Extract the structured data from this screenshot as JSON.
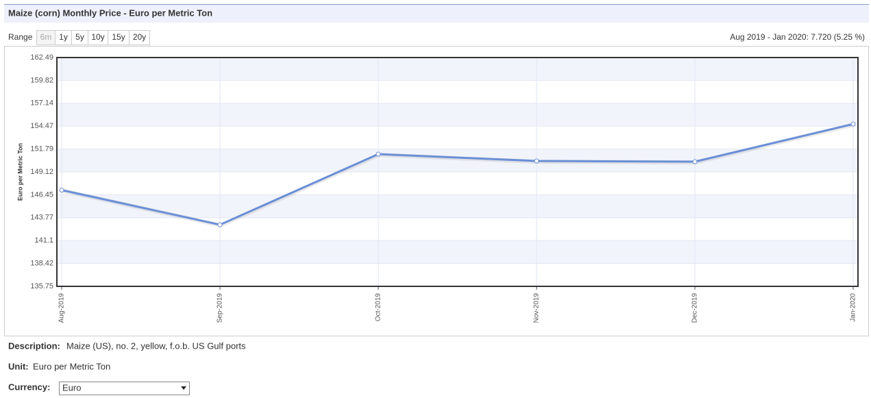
{
  "chart_data": {
    "type": "line",
    "title": "Maize (corn) Monthly Price - Euro per Metric Ton",
    "y_label": "Euro per Metric Ton",
    "categories": [
      "Aug-2019",
      "Sep-2019",
      "Oct-2019",
      "Nov-2019",
      "Dec-2019",
      "Jan-2020"
    ],
    "series": [
      {
        "color": "#6a8fd6",
        "values": [
          147.0,
          142.95,
          151.2,
          150.4,
          150.32,
          154.72
        ]
      }
    ],
    "ylim": [
      135.75,
      162.49
    ],
    "yticks": [
      135.75,
      138.42,
      141.1,
      143.77,
      146.45,
      149.12,
      151.79,
      154.47,
      157.14,
      159.82,
      162.49
    ],
    "grid": true,
    "band_color": "#f2f4fb"
  },
  "ui": {
    "range_label": "Range",
    "range_buttons": [
      "6m",
      "1y",
      "5y",
      "10y",
      "15y",
      "20y"
    ],
    "range_summary": "Aug 2019 - Jan 2020: 7.720 (5.25 %)",
    "description_label": "Description:",
    "description": "Maize (US), no. 2, yellow, f.o.b. US Gulf ports",
    "unit_label": "Unit:",
    "unit": "Euro per Metric Ton",
    "currency_label": "Currency:",
    "currency": "Euro"
  }
}
